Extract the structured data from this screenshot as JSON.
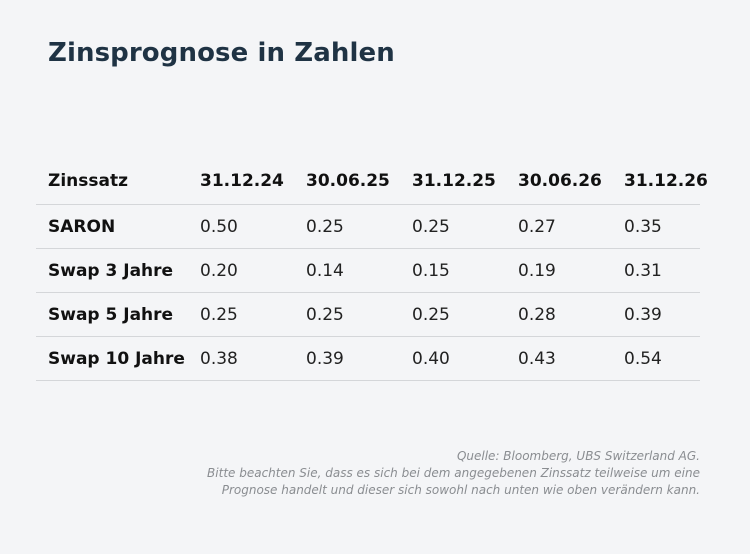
{
  "title": "Zinsprognose in Zahlen",
  "table": {
    "headers": [
      "Zinssatz",
      "31.12.24",
      "30.06.25",
      "31.12.25",
      "30.06.26",
      "31.12.26"
    ],
    "rows": [
      {
        "label": "SARON",
        "values": [
          "0.50",
          "0.25",
          "0.25",
          "0.27",
          "0.35"
        ]
      },
      {
        "label": "Swap 3 Jahre",
        "values": [
          "0.20",
          "0.14",
          "0.15",
          "0.19",
          "0.31"
        ]
      },
      {
        "label": "Swap 5 Jahre",
        "values": [
          "0.25",
          "0.25",
          "0.25",
          "0.28",
          "0.39"
        ]
      },
      {
        "label": "Swap 10 Jahre",
        "values": [
          "0.38",
          "0.39",
          "0.40",
          "0.43",
          "0.54"
        ]
      }
    ]
  },
  "footnote": {
    "source": "Quelle: Bloomberg, UBS Switzerland AG.",
    "disclaimer_line1": "Bitte beachten Sie, dass es sich bei dem angegebenen Zinssatz teilweise um eine",
    "disclaimer_line2": "Prognose handelt und dieser sich sowohl nach unten wie oben verändern kann."
  }
}
